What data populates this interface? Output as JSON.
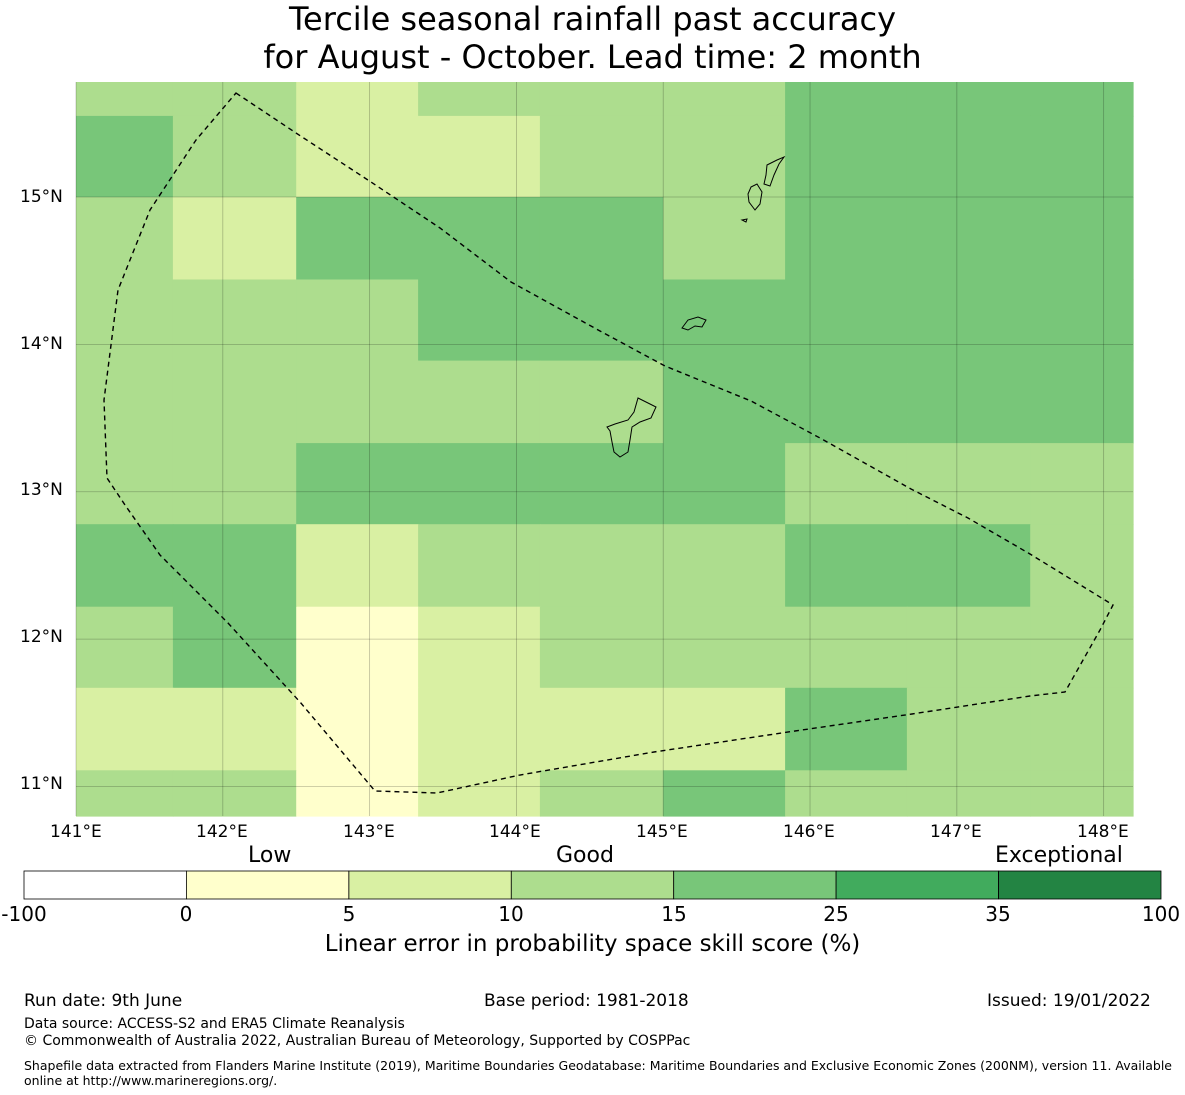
{
  "title": {
    "line1": "Tercile seasonal rainfall past accuracy",
    "line2": "for August - October. Lead time: 2 month"
  },
  "map": {
    "lon_range": [
      141.0,
      148.2
    ],
    "lat_range": [
      10.8,
      15.78
    ],
    "lat_ticks": [
      {
        "value": 15,
        "label": "15°N"
      },
      {
        "value": 14,
        "label": "14°N"
      },
      {
        "value": 13,
        "label": "13°N"
      },
      {
        "value": 12,
        "label": "12°N"
      },
      {
        "value": 11,
        "label": "11°N"
      }
    ],
    "lon_ticks": [
      {
        "value": 141,
        "label": "141°E"
      },
      {
        "value": 142,
        "label": "142°E"
      },
      {
        "value": 143,
        "label": "143°E"
      },
      {
        "value": 144,
        "label": "144°E"
      },
      {
        "value": 145,
        "label": "145°E"
      },
      {
        "value": 146,
        "label": "146°E"
      },
      {
        "value": 147,
        "label": "147°E"
      },
      {
        "value": 148,
        "label": "148°E"
      }
    ],
    "grid_lon_edges": [
      141.0,
      141.66,
      142.5,
      143.33,
      144.16,
      145.0,
      145.83,
      146.66,
      147.5,
      148.2
    ],
    "grid_lat_edges": [
      15.78,
      15.55,
      15.0,
      14.44,
      13.89,
      13.33,
      12.78,
      12.22,
      11.67,
      11.11,
      10.8
    ],
    "category_colors": [
      "#ffffcc",
      "#d9f0a3",
      "#addd8e",
      "#78c679"
    ],
    "cell_categories": [
      [
        2,
        2,
        1,
        2,
        2,
        2,
        3,
        3,
        3
      ],
      [
        3,
        2,
        1,
        1,
        2,
        2,
        3,
        3,
        3
      ],
      [
        2,
        1,
        3,
        3,
        3,
        2,
        3,
        3,
        3
      ],
      [
        2,
        2,
        2,
        3,
        3,
        3,
        3,
        3,
        3
      ],
      [
        2,
        2,
        2,
        2,
        2,
        3,
        3,
        3,
        3
      ],
      [
        2,
        2,
        3,
        3,
        3,
        3,
        2,
        2,
        2
      ],
      [
        3,
        3,
        1,
        2,
        2,
        2,
        3,
        3,
        2
      ],
      [
        2,
        3,
        0,
        1,
        2,
        2,
        2,
        2,
        2
      ],
      [
        1,
        1,
        0,
        1,
        1,
        1,
        3,
        2,
        2
      ],
      [
        2,
        2,
        0,
        1,
        2,
        3,
        2,
        2,
        2
      ]
    ],
    "boundary_note": "EEZ boundary dashed polygon",
    "islands": [
      "guam",
      "rota",
      "tinian",
      "saipan"
    ]
  },
  "colorbar": {
    "categories": [
      {
        "label": "Low"
      },
      {
        "label": "Good"
      },
      {
        "label": "Exceptional"
      }
    ],
    "colors": [
      "#ffffff",
      "#ffffcc",
      "#d9f0a3",
      "#addd8e",
      "#78c679",
      "#41ab5d",
      "#238443"
    ],
    "ticks": [
      "-100",
      "0",
      "5",
      "10",
      "15",
      "25",
      "35",
      "100"
    ],
    "label": "Linear error in probability space skill score (%)"
  },
  "footer": {
    "run_date": "Run date: 9th June",
    "base_period": "Base period: 1981-2018",
    "issued": "Issued: 19/01/2022",
    "data_source": "Data source: ACCESS-S2 and ERA5 Climate Reanalysis",
    "copyright": "© Commonwealth of Australia 2022, Australian Bureau of Meteorology, Supported by COSPPac",
    "shapefile": "Shapefile data extracted from Flanders Marine Institute (2019), Maritime Boundaries Geodatabase: Maritime Boundaries and Exclusive Economic Zones (200NM), version 11. Available online at http://www.marineregions.org/."
  }
}
